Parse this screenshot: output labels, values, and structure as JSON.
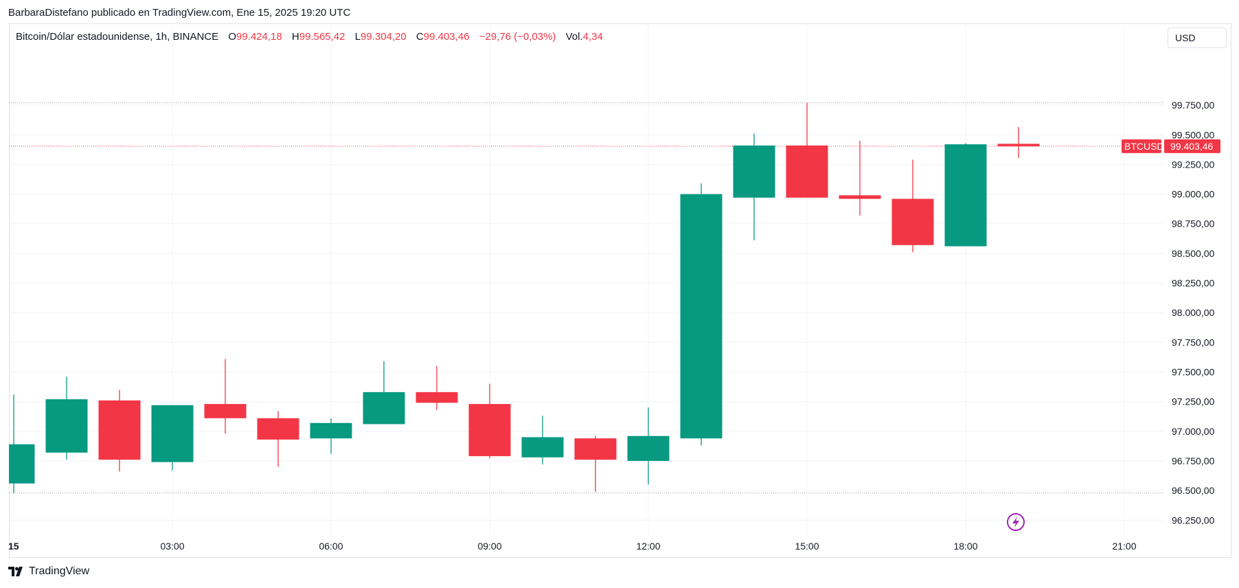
{
  "caption": "BarbaraDistefano publicado en TradingView.com, Ene 15, 2025 19:20 UTC",
  "legend": {
    "symbol": "Bitcoin/Dólar estadounidense, 1h, BINANCE",
    "o_label": "O",
    "o_value": "99.424,18",
    "h_label": "H",
    "h_value": "99.565,42",
    "l_label": "L",
    "l_value": "99.304,20",
    "c_label": "C",
    "c_value": "99.403,46",
    "change": "−29,76 (−0,03%)",
    "vol_label": "Vol.",
    "vol_value": "4,34"
  },
  "currency": "USD",
  "price_tag": {
    "symbol": "BTCUSD",
    "value": "99.403,46"
  },
  "footer_brand": "TradingView",
  "colors": {
    "up": "#089981",
    "down": "#f23645",
    "grid": "#f0f3fa",
    "axis_text": "#131722"
  },
  "icons": {
    "flash": "lightning-bolt-icon"
  },
  "chart_data": {
    "type": "candlestick",
    "x_tick_labels": [
      "15",
      "03:00",
      "06:00",
      "09:00",
      "12:00",
      "15:00",
      "18:00",
      "21:00"
    ],
    "x_ticks_hours": [
      0,
      3,
      6,
      9,
      12,
      15,
      18,
      21
    ],
    "y_tick_labels": [
      "96.250,00",
      "96.500,00",
      "96.750,00",
      "97.000,00",
      "97.250,00",
      "97.500,00",
      "97.750,00",
      "98.000,00",
      "98.250,00",
      "98.500,00",
      "98.750,00",
      "99.000,00",
      "99.250,00",
      "99.500,00",
      "99.750,00"
    ],
    "y_ticks": [
      96250,
      96500,
      96750,
      97000,
      97250,
      97500,
      97750,
      98000,
      98250,
      98500,
      98750,
      99000,
      99250,
      99500,
      99750
    ],
    "ylim": [
      96130,
      100440
    ],
    "xlim_hours": [
      -0.1,
      21.9
    ],
    "last_price": 99403.46,
    "high_line": 99770,
    "low_line": 96480,
    "candles": [
      {
        "hour": 0,
        "open": 96560,
        "high": 97310,
        "low": 96480,
        "close": 96890
      },
      {
        "hour": 1,
        "open": 96820,
        "high": 97460,
        "low": 96760,
        "close": 97270
      },
      {
        "hour": 2,
        "open": 97260,
        "high": 97350,
        "low": 96660,
        "close": 96760
      },
      {
        "hour": 3,
        "open": 96740,
        "high": 97220,
        "low": 96670,
        "close": 97220
      },
      {
        "hour": 4,
        "open": 97230,
        "high": 97610,
        "low": 96980,
        "close": 97110
      },
      {
        "hour": 5,
        "open": 97110,
        "high": 97170,
        "low": 96700,
        "close": 96930
      },
      {
        "hour": 6,
        "open": 96940,
        "high": 97110,
        "low": 96810,
        "close": 97070
      },
      {
        "hour": 7,
        "open": 97060,
        "high": 97590,
        "low": 97060,
        "close": 97330
      },
      {
        "hour": 8,
        "open": 97330,
        "high": 97550,
        "low": 97180,
        "close": 97240
      },
      {
        "hour": 9,
        "open": 97230,
        "high": 97400,
        "low": 96770,
        "close": 96790
      },
      {
        "hour": 10,
        "open": 96780,
        "high": 97130,
        "low": 96720,
        "close": 96950
      },
      {
        "hour": 11,
        "open": 96940,
        "high": 96960,
        "low": 96490,
        "close": 96760
      },
      {
        "hour": 12,
        "open": 96750,
        "high": 97200,
        "low": 96550,
        "close": 96960
      },
      {
        "hour": 13,
        "open": 96940,
        "high": 99090,
        "low": 96880,
        "close": 99000
      },
      {
        "hour": 14,
        "open": 98970,
        "high": 99510,
        "low": 98610,
        "close": 99410
      },
      {
        "hour": 15,
        "open": 99410,
        "high": 99770,
        "low": 98970,
        "close": 98970
      },
      {
        "hour": 16,
        "open": 98990,
        "high": 99450,
        "low": 98820,
        "close": 98960
      },
      {
        "hour": 17,
        "open": 98960,
        "high": 99290,
        "low": 98510,
        "close": 98570
      },
      {
        "hour": 18,
        "open": 98560,
        "high": 99430,
        "low": 98560,
        "close": 99420
      },
      {
        "hour": 19,
        "open": 99424.18,
        "high": 99565.42,
        "low": 99304.2,
        "close": 99403.46
      }
    ]
  }
}
